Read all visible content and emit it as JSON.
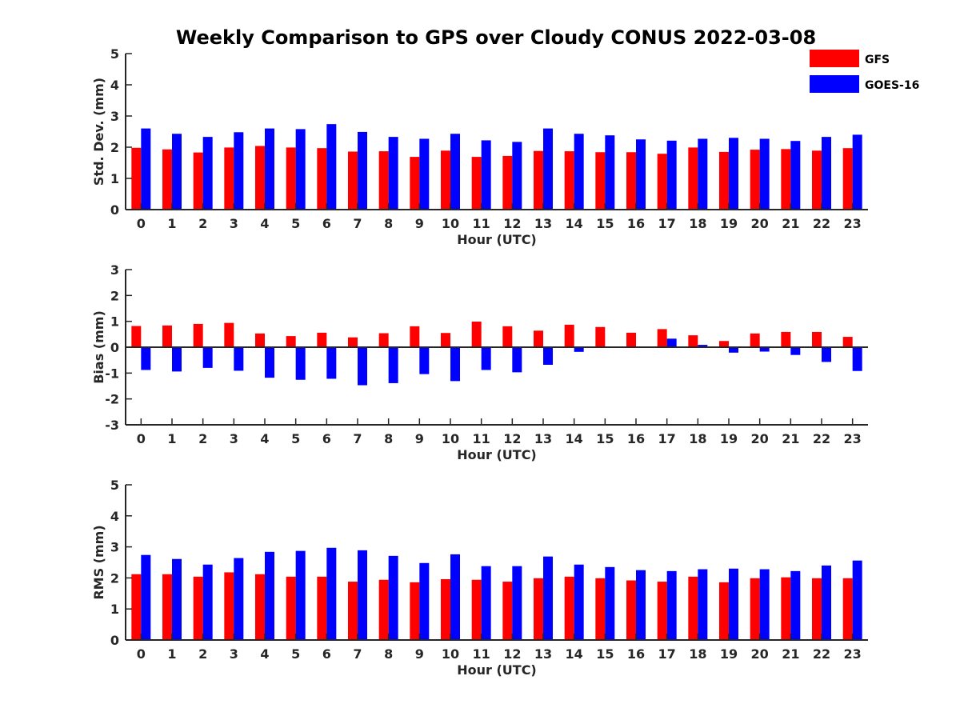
{
  "title": "Weekly Comparison to GPS over Cloudy CONUS 2022-03-08",
  "legend": [
    {
      "label": "GFS",
      "color": "#ff0000"
    },
    {
      "label": "GOES-16",
      "color": "#0000ff"
    }
  ],
  "chart_data": [
    {
      "type": "bar",
      "title": "Weekly Comparison to GPS over Cloudy CONUS 2022-03-08",
      "xlabel": "Hour (UTC)",
      "ylabel": "Std. Dev. (mm)",
      "ylim": [
        0,
        5
      ],
      "yticks": [
        0,
        1,
        2,
        3,
        4,
        5
      ],
      "categories": [
        "0",
        "1",
        "2",
        "3",
        "4",
        "5",
        "6",
        "7",
        "8",
        "9",
        "10",
        "11",
        "12",
        "13",
        "14",
        "15",
        "16",
        "17",
        "18",
        "19",
        "20",
        "21",
        "22",
        "23"
      ],
      "series": [
        {
          "name": "GFS",
          "color": "#ff0000",
          "values": [
            1.98,
            1.93,
            1.83,
            1.99,
            2.04,
            1.99,
            1.97,
            1.86,
            1.87,
            1.69,
            1.89,
            1.69,
            1.72,
            1.88,
            1.87,
            1.84,
            1.84,
            1.79,
            1.99,
            1.85,
            1.92,
            1.94,
            1.89,
            1.97
          ]
        },
        {
          "name": "GOES-16",
          "color": "#0000ff",
          "values": [
            2.6,
            2.43,
            2.33,
            2.48,
            2.6,
            2.58,
            2.74,
            2.49,
            2.33,
            2.27,
            2.43,
            2.22,
            2.17,
            2.6,
            2.43,
            2.38,
            2.25,
            2.21,
            2.27,
            2.3,
            2.27,
            2.2,
            2.33,
            2.4
          ]
        }
      ],
      "legend_position": "top-right"
    },
    {
      "type": "bar",
      "xlabel": "Hour (UTC)",
      "ylabel": "Bias (mm)",
      "ylim": [
        -3,
        3
      ],
      "yticks": [
        -3,
        -2,
        -1,
        0,
        1,
        2,
        3
      ],
      "categories": [
        "0",
        "1",
        "2",
        "3",
        "4",
        "5",
        "6",
        "7",
        "8",
        "9",
        "10",
        "11",
        "12",
        "13",
        "14",
        "15",
        "16",
        "17",
        "18",
        "19",
        "20",
        "21",
        "22",
        "23"
      ],
      "series": [
        {
          "name": "GFS",
          "color": "#ff0000",
          "values": [
            0.82,
            0.84,
            0.9,
            0.94,
            0.53,
            0.43,
            0.56,
            0.38,
            0.54,
            0.81,
            0.55,
            0.99,
            0.81,
            0.64,
            0.87,
            0.78,
            0.56,
            0.7,
            0.46,
            0.24,
            0.53,
            0.59,
            0.59,
            0.4
          ]
        },
        {
          "name": "GOES-16",
          "color": "#0000ff",
          "values": [
            -0.88,
            -0.94,
            -0.8,
            -0.91,
            -1.18,
            -1.26,
            -1.22,
            -1.47,
            -1.39,
            -1.04,
            -1.31,
            -0.88,
            -0.97,
            -0.68,
            -0.18,
            -0.02,
            0.03,
            0.33,
            0.09,
            -0.21,
            -0.17,
            -0.3,
            -0.57,
            -0.92
          ]
        }
      ]
    },
    {
      "type": "bar",
      "xlabel": "Hour (UTC)",
      "ylabel": "RMS (mm)",
      "ylim": [
        0,
        5
      ],
      "yticks": [
        0,
        1,
        2,
        3,
        4,
        5
      ],
      "categories": [
        "0",
        "1",
        "2",
        "3",
        "4",
        "5",
        "6",
        "7",
        "8",
        "9",
        "10",
        "11",
        "12",
        "13",
        "14",
        "15",
        "16",
        "17",
        "18",
        "19",
        "20",
        "21",
        "22",
        "23"
      ],
      "series": [
        {
          "name": "GFS",
          "color": "#ff0000",
          "values": [
            2.12,
            2.12,
            2.04,
            2.18,
            2.12,
            2.04,
            2.04,
            1.88,
            1.94,
            1.86,
            1.96,
            1.94,
            1.88,
            1.99,
            2.04,
            1.99,
            1.92,
            1.88,
            2.04,
            1.86,
            1.99,
            2.02,
            1.99,
            1.99
          ]
        },
        {
          "name": "GOES-16",
          "color": "#0000ff",
          "values": [
            2.74,
            2.61,
            2.43,
            2.64,
            2.84,
            2.87,
            2.97,
            2.89,
            2.71,
            2.48,
            2.76,
            2.38,
            2.38,
            2.69,
            2.43,
            2.35,
            2.25,
            2.22,
            2.28,
            2.3,
            2.28,
            2.22,
            2.4,
            2.56
          ]
        }
      ]
    }
  ]
}
